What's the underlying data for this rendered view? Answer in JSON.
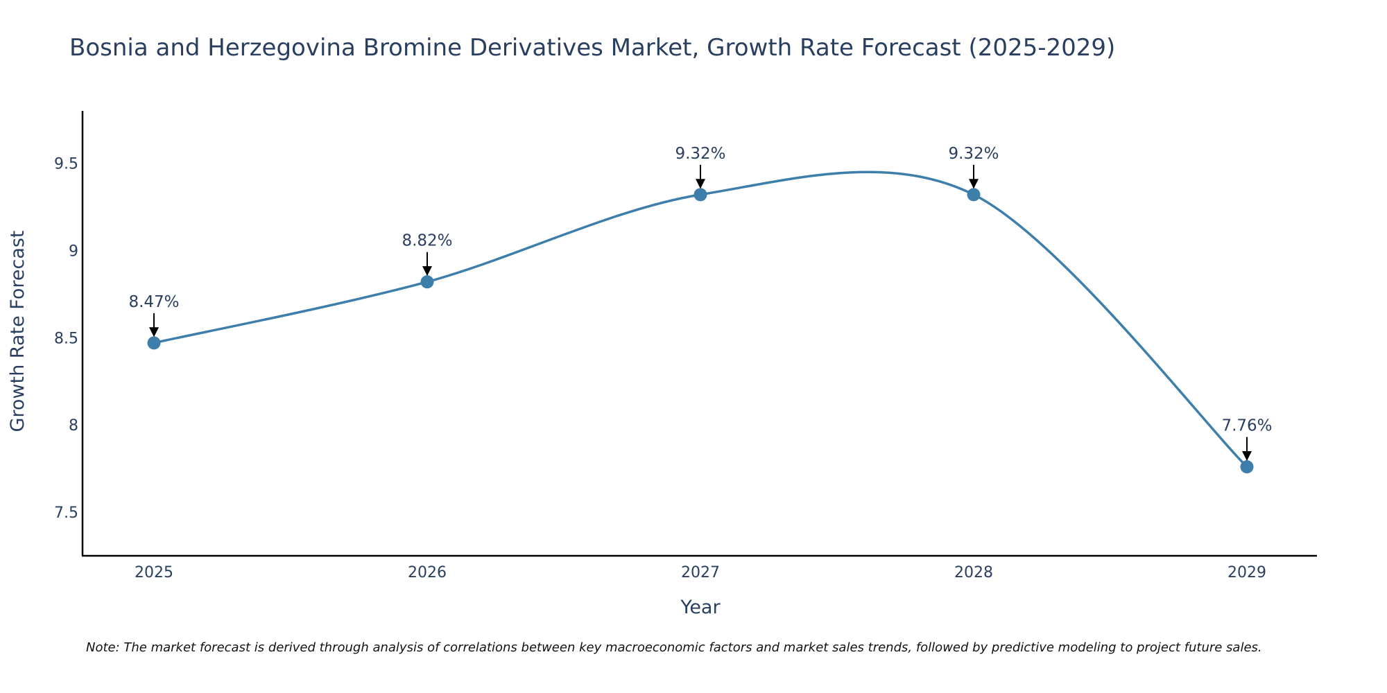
{
  "chart_data": {
    "type": "line",
    "title": "Bosnia and Herzegovina Bromine Derivatives Market, Growth Rate Forecast (2025-2029)",
    "xlabel": "Year",
    "ylabel": "Growth Rate Forecast",
    "categories": [
      "2025",
      "2026",
      "2027",
      "2028",
      "2029"
    ],
    "series": [
      {
        "values": [
          8.47,
          8.82,
          9.32,
          9.32,
          7.76
        ]
      }
    ],
    "data_labels": [
      "8.47%",
      "8.82%",
      "9.32%",
      "9.32%",
      "7.76%"
    ],
    "yticks": [
      7.5,
      8,
      8.5,
      9,
      9.5
    ],
    "ytick_labels": [
      "7.5",
      "8",
      "8.5",
      "9",
      "9.5"
    ],
    "ylim": [
      7.25,
      9.8
    ],
    "line_shape": "spline",
    "grid": false,
    "legend": "none",
    "line_color": "#3d7eaa",
    "marker_color": "#3d7eaa",
    "arrow_color": "#000000",
    "note": "Note: The market forecast is derived through analysis of correlations between key macroeconomic factors and market sales trends, followed by predictive modeling to project future sales."
  }
}
